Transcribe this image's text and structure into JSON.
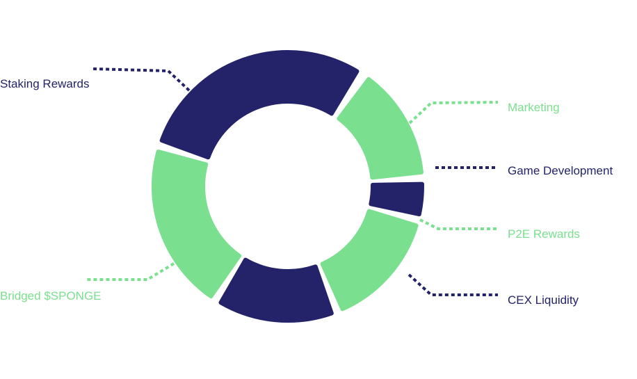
{
  "chart_data": {
    "type": "pie",
    "title": "",
    "legend": "none",
    "colors": {
      "dark": "#24236A",
      "green": "#7AE08F"
    },
    "series": [
      {
        "label": "Staking Rewards",
        "color": "dark"
      },
      {
        "label": "Marketing",
        "color": "green"
      },
      {
        "label": "Game Development",
        "color": "dark"
      },
      {
        "label": "P2E Rewards",
        "color": "green"
      },
      {
        "label": "CEX Liquidity",
        "color": "dark"
      },
      {
        "label": "Bridged $SPONGE",
        "color": "green"
      }
    ],
    "values_note": "Slice shares are not printed in the image; sizes estimated from the ring."
  }
}
